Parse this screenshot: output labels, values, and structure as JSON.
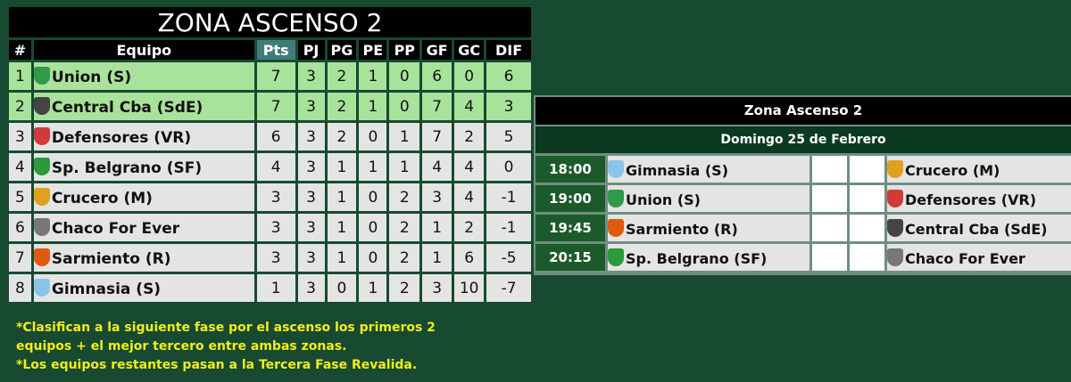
{
  "standings": {
    "title": "ZONA ASCENSO 2",
    "headers": [
      "#",
      "Equipo",
      "Pts",
      "PJ",
      "PG",
      "PE",
      "PP",
      "GF",
      "GC",
      "DIF"
    ],
    "rows": [
      {
        "pos": "1",
        "team": "Union (S)",
        "crest": "#2e9a4a",
        "pts": "7",
        "pj": "3",
        "pg": "2",
        "pe": "1",
        "pp": "0",
        "gf": "6",
        "gc": "0",
        "dif": "6",
        "qualified": true
      },
      {
        "pos": "2",
        "team": "Central Cba (SdE)",
        "crest": "#444444",
        "pts": "7",
        "pj": "3",
        "pg": "2",
        "pe": "1",
        "pp": "0",
        "gf": "7",
        "gc": "4",
        "dif": "3",
        "qualified": true
      },
      {
        "pos": "3",
        "team": "Defensores (VR)",
        "crest": "#d23a3a",
        "pts": "6",
        "pj": "3",
        "pg": "2",
        "pe": "0",
        "pp": "1",
        "gf": "7",
        "gc": "2",
        "dif": "5",
        "qualified": false
      },
      {
        "pos": "4",
        "team": "Sp. Belgrano (SF)",
        "crest": "#2a9a3a",
        "pts": "4",
        "pj": "3",
        "pg": "1",
        "pe": "1",
        "pp": "1",
        "gf": "4",
        "gc": "4",
        "dif": "0",
        "qualified": false
      },
      {
        "pos": "5",
        "team": "Crucero (M)",
        "crest": "#e0a020",
        "pts": "3",
        "pj": "3",
        "pg": "1",
        "pe": "0",
        "pp": "2",
        "gf": "3",
        "gc": "4",
        "dif": "-1",
        "qualified": false
      },
      {
        "pos": "6",
        "team": "Chaco For Ever",
        "crest": "#777777",
        "pts": "3",
        "pj": "3",
        "pg": "1",
        "pe": "0",
        "pp": "2",
        "gf": "1",
        "gc": "2",
        "dif": "-1",
        "qualified": false
      },
      {
        "pos": "7",
        "team": "Sarmiento (R)",
        "crest": "#e05a10",
        "pts": "3",
        "pj": "3",
        "pg": "1",
        "pe": "0",
        "pp": "2",
        "gf": "1",
        "gc": "6",
        "dif": "-5",
        "qualified": false
      },
      {
        "pos": "8",
        "team": "Gimnasia (S)",
        "crest": "#8cc4e8",
        "pts": "1",
        "pj": "3",
        "pg": "0",
        "pe": "1",
        "pp": "2",
        "gf": "3",
        "gc": "10",
        "dif": "-7",
        "qualified": false
      }
    ],
    "notes": [
      "*Clasifican a la siguiente fase por el ascenso los primeros 2",
      "equipos + el mejor tercero entre ambas zonas.",
      "*Los equipos restantes pasan a la Tercera Fase Revalida."
    ]
  },
  "fixtures": {
    "title": "Zona Ascenso 2",
    "date": "Domingo 25 de Febrero",
    "matches": [
      {
        "time": "18:00",
        "home": "Gimnasia (S)",
        "home_crest": "#8cc4e8",
        "away": "Crucero (M)",
        "away_crest": "#e0a020",
        "home_score": "",
        "away_score": ""
      },
      {
        "time": "19:00",
        "home": "Union (S)",
        "home_crest": "#2e9a4a",
        "away": "Defensores (VR)",
        "away_crest": "#d23a3a",
        "home_score": "",
        "away_score": ""
      },
      {
        "time": "19:45",
        "home": "Sarmiento (R)",
        "home_crest": "#e05a10",
        "away": "Central Cba (SdE)",
        "away_crest": "#444444",
        "home_score": "",
        "away_score": ""
      },
      {
        "time": "20:15",
        "home": "Sp. Belgrano (SF)",
        "home_crest": "#2a9a3a",
        "away": "Chaco For Ever",
        "away_crest": "#777777",
        "home_score": "",
        "away_score": ""
      }
    ]
  }
}
